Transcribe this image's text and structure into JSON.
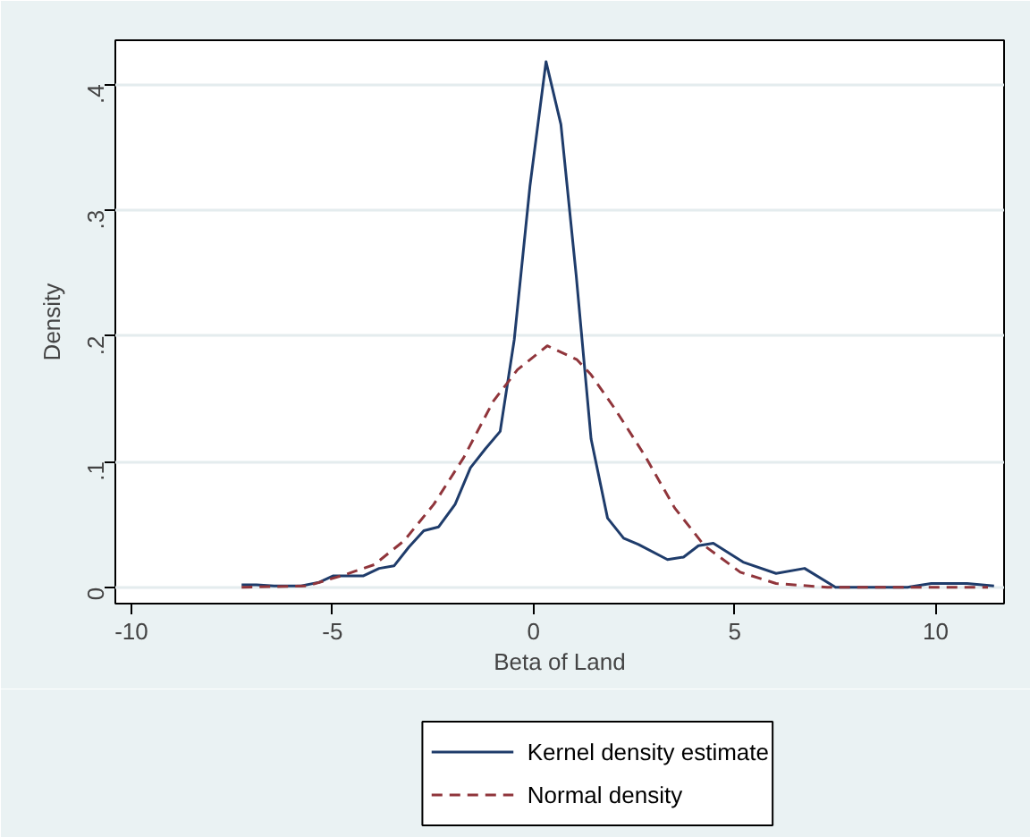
{
  "chart_data": {
    "type": "line",
    "xlabel": "Beta of Land",
    "ylabel": "Density",
    "xlim": [
      -10.4,
      11.7
    ],
    "ylim": [
      -0.013,
      0.435
    ],
    "xticks": [
      -10,
      -5,
      0,
      5,
      10
    ],
    "yticks": [
      {
        "value": 0,
        "label": "0"
      },
      {
        "value": 0.1,
        "label": ".1"
      },
      {
        "value": 0.2,
        "label": ".2"
      },
      {
        "value": 0.3,
        "label": ".3"
      },
      {
        "value": 0.4,
        "label": ".4"
      }
    ],
    "grid": "y",
    "legend": "bottom",
    "marker": "none",
    "series": [
      {
        "name": "Kernel density estimate",
        "color": "#1f3c6b",
        "line_style": "solid",
        "x": [
          -7.26,
          -6.89,
          -6.45,
          -5.78,
          -5.33,
          -4.99,
          -4.63,
          -4.24,
          -3.84,
          -3.47,
          -3.1,
          -2.73,
          -2.36,
          -1.95,
          -1.57,
          -1.2,
          -0.83,
          -0.48,
          -0.09,
          0.31,
          0.68,
          1.06,
          1.43,
          1.84,
          2.24,
          2.61,
          3.33,
          3.73,
          4.1,
          4.47,
          5.21,
          6.03,
          6.74,
          7.51,
          9.3,
          9.89,
          10.78,
          11.45
        ],
        "values": [
          0.002,
          0.002,
          0.001,
          0.001,
          0.004,
          0.009,
          0.009,
          0.009,
          0.015,
          0.017,
          0.032,
          0.045,
          0.048,
          0.066,
          0.095,
          0.11,
          0.124,
          0.197,
          0.319,
          0.418,
          0.368,
          0.248,
          0.118,
          0.055,
          0.039,
          0.034,
          0.022,
          0.024,
          0.033,
          0.035,
          0.02,
          0.011,
          0.015,
          0.0,
          0.0,
          0.003,
          0.003,
          0.001
        ]
      },
      {
        "name": "Normal density",
        "color": "#90353b",
        "line_style": "dashed",
        "x": [
          -7.26,
          -5.63,
          -4.69,
          -3.96,
          -3.22,
          -2.48,
          -1.74,
          -1.0,
          -0.4,
          0.34,
          1.08,
          1.43,
          2.02,
          2.76,
          3.51,
          4.25,
          5.14,
          6.03,
          7.3,
          11.3
        ],
        "values": [
          0.0,
          0.001,
          0.01,
          0.018,
          0.037,
          0.066,
          0.103,
          0.148,
          0.173,
          0.192,
          0.181,
          0.169,
          0.142,
          0.105,
          0.063,
          0.033,
          0.012,
          0.003,
          0.0,
          0.0
        ]
      }
    ]
  }
}
